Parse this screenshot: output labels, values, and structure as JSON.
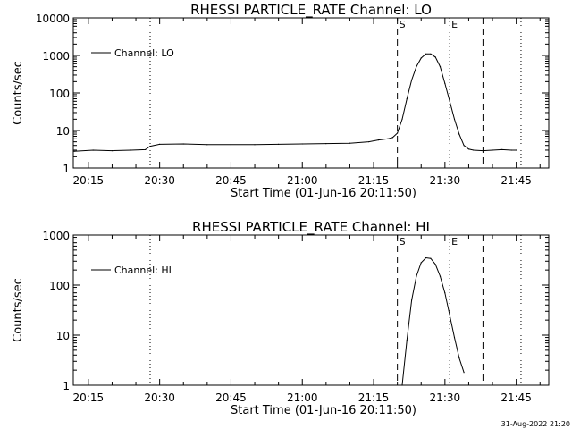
{
  "footer": {
    "timestamp": "31-Aug-2022 21:20"
  },
  "chart_data": [
    {
      "type": "line",
      "title": "RHESSI PARTICLE_RATE Channel: LO",
      "xlabel": "Start Time (01-Jun-16 20:11:50)",
      "ylabel": "Counts/sec",
      "x_unit": "minutes (clock time 01-Jun-16)",
      "xlim": [
        "20:11:50",
        "21:51:50"
      ],
      "ylim": [
        1,
        10000
      ],
      "yscale": "log",
      "x_ticks": [
        "20:15",
        "20:30",
        "20:45",
        "21:00",
        "21:15",
        "21:30",
        "21:45"
      ],
      "y_ticks": [
        "1",
        "10",
        "100",
        "1000",
        "10000"
      ],
      "legend": {
        "entries": [
          "Channel: LO"
        ],
        "position": "top-left"
      },
      "grid": false,
      "markers": [
        {
          "label": "",
          "time": "20:28",
          "style": "dotted"
        },
        {
          "label": "S",
          "time": "21:20",
          "style": "dashed"
        },
        {
          "label": "E",
          "time": "21:31",
          "style": "dotted"
        },
        {
          "label": "",
          "time": "21:38",
          "style": "dashed"
        },
        {
          "label": "",
          "time": "21:46",
          "style": "dotted"
        }
      ],
      "series": [
        {
          "name": "Channel: LO",
          "x": [
            "20:12",
            "20:16",
            "20:20",
            "20:24",
            "20:27",
            "20:28",
            "20:30",
            "20:35",
            "20:40",
            "20:45",
            "20:50",
            "20:55",
            "21:00",
            "21:05",
            "21:10",
            "21:14",
            "21:16",
            "21:18",
            "21:19",
            "21:20",
            "21:21",
            "21:22",
            "21:23",
            "21:24",
            "21:25",
            "21:26",
            "21:27",
            "21:28",
            "21:29",
            "21:30",
            "21:31",
            "21:32",
            "21:33",
            "21:34",
            "21:35",
            "21:36",
            "21:38",
            "21:40",
            "21:42",
            "21:44",
            "21:45"
          ],
          "y": [
            2.8,
            3.0,
            2.9,
            3.0,
            3.1,
            3.8,
            4.3,
            4.4,
            4.2,
            4.2,
            4.2,
            4.3,
            4.4,
            4.5,
            4.6,
            5.0,
            5.6,
            6.0,
            6.5,
            8.5,
            20,
            70,
            220,
            500,
            850,
            1100,
            1100,
            900,
            500,
            180,
            60,
            20,
            8,
            4.0,
            3.2,
            3.0,
            2.9,
            3.0,
            3.1,
            3.0,
            3.0
          ]
        }
      ]
    },
    {
      "type": "line",
      "title": "RHESSI PARTICLE_RATE Channel: HI",
      "xlabel": "Start Time (01-Jun-16 20:11:50)",
      "ylabel": "Counts/sec",
      "x_unit": "minutes (clock time 01-Jun-16)",
      "xlim": [
        "20:11:50",
        "21:51:50"
      ],
      "ylim": [
        1,
        1000
      ],
      "yscale": "log",
      "x_ticks": [
        "20:15",
        "20:30",
        "20:45",
        "21:00",
        "21:15",
        "21:30",
        "21:45"
      ],
      "y_ticks": [
        "1",
        "10",
        "100",
        "1000"
      ],
      "legend": {
        "entries": [
          "Channel: HI"
        ],
        "position": "top-left"
      },
      "grid": false,
      "markers": [
        {
          "label": "",
          "time": "20:28",
          "style": "dotted"
        },
        {
          "label": "S",
          "time": "21:20",
          "style": "dashed"
        },
        {
          "label": "E",
          "time": "21:31",
          "style": "dotted"
        },
        {
          "label": "",
          "time": "21:38",
          "style": "dashed"
        },
        {
          "label": "",
          "time": "21:46",
          "style": "dotted"
        }
      ],
      "series": [
        {
          "name": "Channel: HI",
          "x": [
            "21:21",
            "21:22",
            "21:23",
            "21:24",
            "21:25",
            "21:26",
            "21:27",
            "21:28",
            "21:29",
            "21:30",
            "21:31",
            "21:32",
            "21:33",
            "21:34"
          ],
          "y": [
            1,
            8,
            50,
            150,
            280,
            350,
            340,
            260,
            150,
            70,
            25,
            9,
            3.5,
            1.8
          ]
        }
      ]
    }
  ]
}
